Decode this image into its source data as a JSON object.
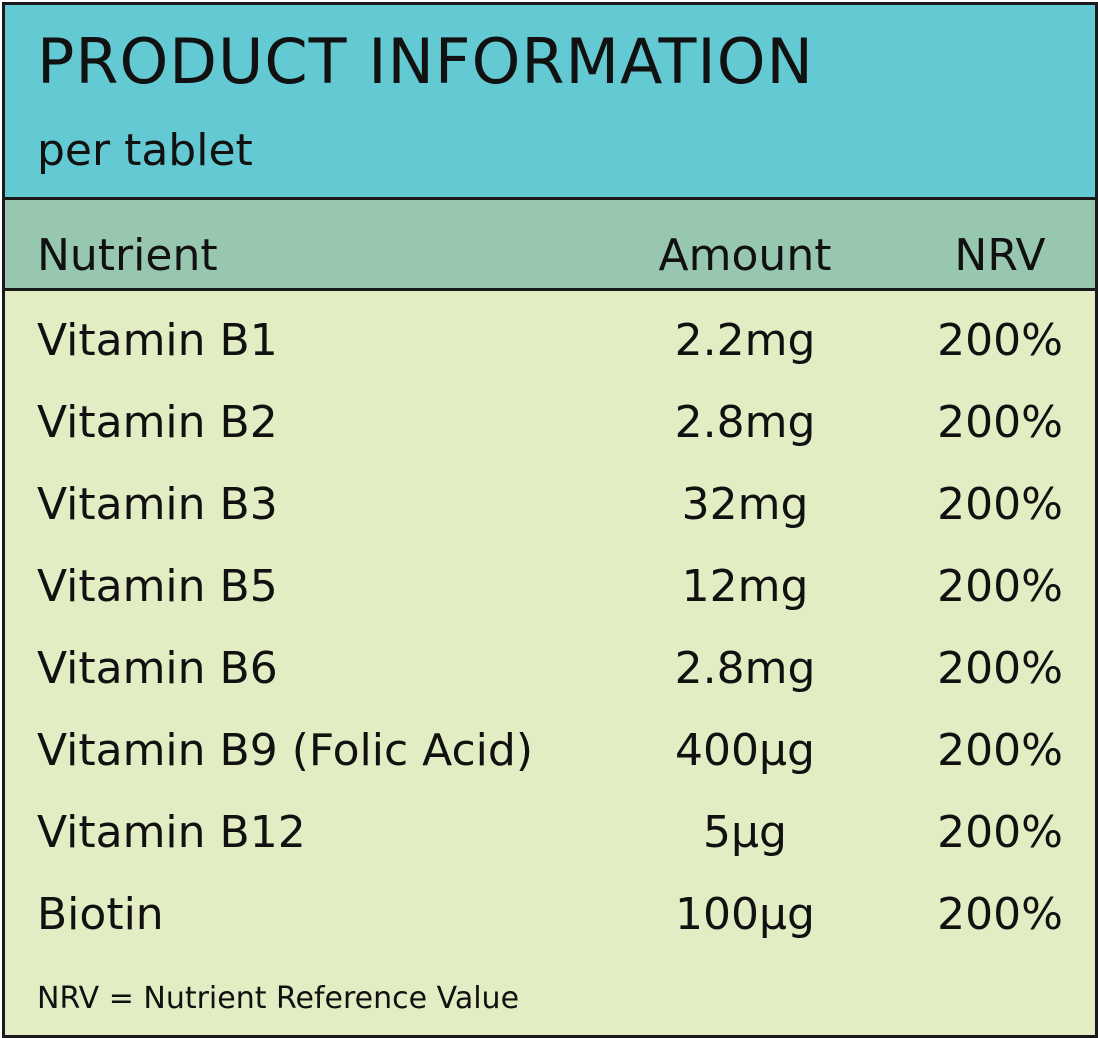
{
  "title": "PRODUCT INFORMATION",
  "subtitle": "per tablet",
  "columns": {
    "nutrient": "Nutrient",
    "amount": "Amount",
    "nrv": "NRV"
  },
  "rows": [
    {
      "nutrient": "Vitamin B1",
      "amount": "2.2mg",
      "nrv": "200%"
    },
    {
      "nutrient": "Vitamin B2",
      "amount": "2.8mg",
      "nrv": "200%"
    },
    {
      "nutrient": "Vitamin B3",
      "amount": "32mg",
      "nrv": "200%"
    },
    {
      "nutrient": "Vitamin B5",
      "amount": "12mg",
      "nrv": "200%"
    },
    {
      "nutrient": "Vitamin B6",
      "amount": "2.8mg",
      "nrv": "200%"
    },
    {
      "nutrient": "Vitamin B9 (Folic Acid)",
      "amount": "400µg",
      "nrv": "200%"
    },
    {
      "nutrient": "Vitamin B12",
      "amount": "5µg",
      "nrv": "200%"
    },
    {
      "nutrient": "Biotin",
      "amount": "100µg",
      "nrv": "200%"
    }
  ],
  "footnote": "NRV = Nutrient Reference Value",
  "colors": {
    "title_band": "#63c9d3",
    "header_band": "#97c7af",
    "body_background": "#e3edc3",
    "border": "#1a1a1a"
  }
}
